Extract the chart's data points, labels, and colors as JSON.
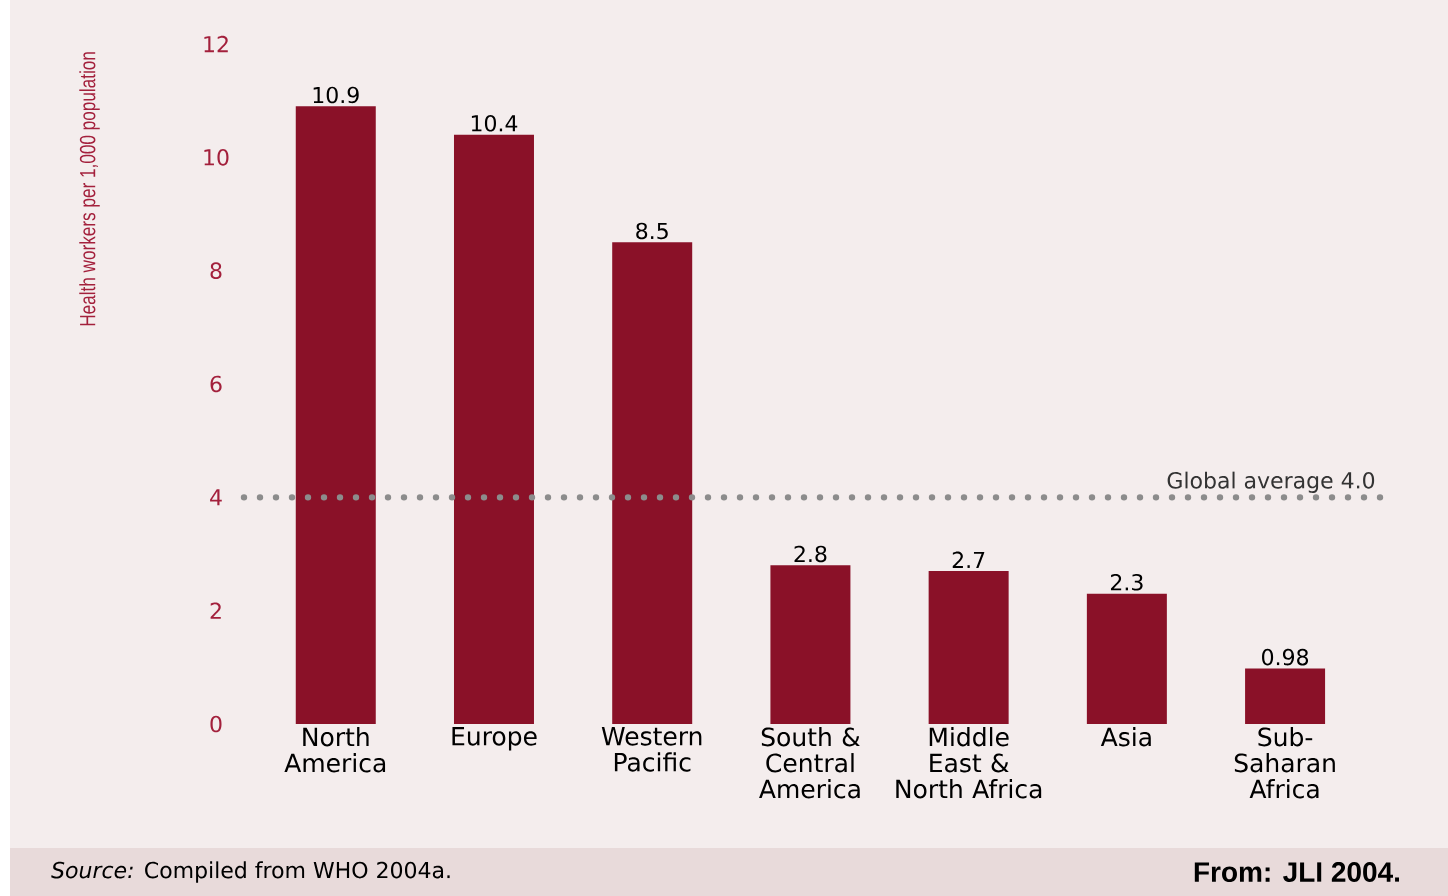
{
  "chart_data": {
    "type": "bar",
    "ylabel": "Health workers per 1,000 population",
    "categories": [
      "North America",
      "Europe",
      "Western Pacific",
      "South & Central America",
      "Middle East & North Africa",
      "Asia",
      "Sub-Saharan Africa"
    ],
    "values": [
      10.9,
      10.4,
      8.5,
      2.8,
      2.7,
      2.3,
      0.98
    ],
    "color": "#8a1128",
    "ylim": [
      0,
      12
    ],
    "yticks": [
      0,
      2,
      4,
      6,
      8,
      10,
      12
    ],
    "data_labels": true,
    "ref_lines": [
      {
        "axis": "y",
        "value": 4.0,
        "label": "Global average 4.0",
        "color": "#8c8c8c",
        "line_style": "dotted"
      }
    ],
    "annotations": [
      "*Source:* Compiled from WHO 2004a.",
      "From: JLI 2004."
    ]
  }
}
